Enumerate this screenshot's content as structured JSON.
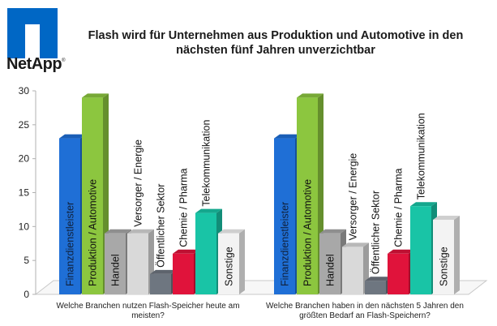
{
  "logo": {
    "brand": "NetApp",
    "color": "#0067c5"
  },
  "chart_data": {
    "type": "bar",
    "title": "Flash wird für Unternehmen aus Produktion und Automotive in den nächsten fünf Jahren unverzichtbar",
    "title_lines": [
      "Flash wird für Unternehmen aus Produktion und Automotive in den",
      "nächsten fünf Jahren unverzichtbar"
    ],
    "ylim": [
      0,
      30
    ],
    "yticks": [
      "0",
      "5",
      "10",
      "15",
      "20",
      "25",
      "30"
    ],
    "grid": false,
    "categories": [
      "Finanzdienstleister",
      "Produktion / Automotive",
      "Handel",
      "Versorger / Energie",
      "Öffentlicher Sektor",
      "Chemie / Pharma",
      "Telekommunikation",
      "Sonstige"
    ],
    "colors": [
      "#1f6fd6",
      "#8cc63f",
      "#a8a8a8",
      "#d9d9d9",
      "#6e7680",
      "#e0133b",
      "#19c4a6",
      "#f3f3f3"
    ],
    "groups": [
      {
        "name": "Welche Branchen nutzen Flash-Speicher heute am meisten?",
        "caption_lines": [
          "Welche Branchen nutzen Flash-Speicher heute am",
          "meisten?"
        ],
        "values": [
          23,
          29,
          9,
          9,
          3,
          6,
          12,
          9
        ]
      },
      {
        "name": "Welche Branchen haben in den nächsten 5 Jahren den größten Bedarf an Flash-Speichern?",
        "caption_lines": [
          "Welche Branchen haben in den nächsten 5 Jahren den",
          "größten Bedarf an Flash-Speichern?"
        ],
        "values": [
          23,
          29,
          9,
          7,
          2,
          6,
          13,
          11
        ]
      }
    ]
  }
}
